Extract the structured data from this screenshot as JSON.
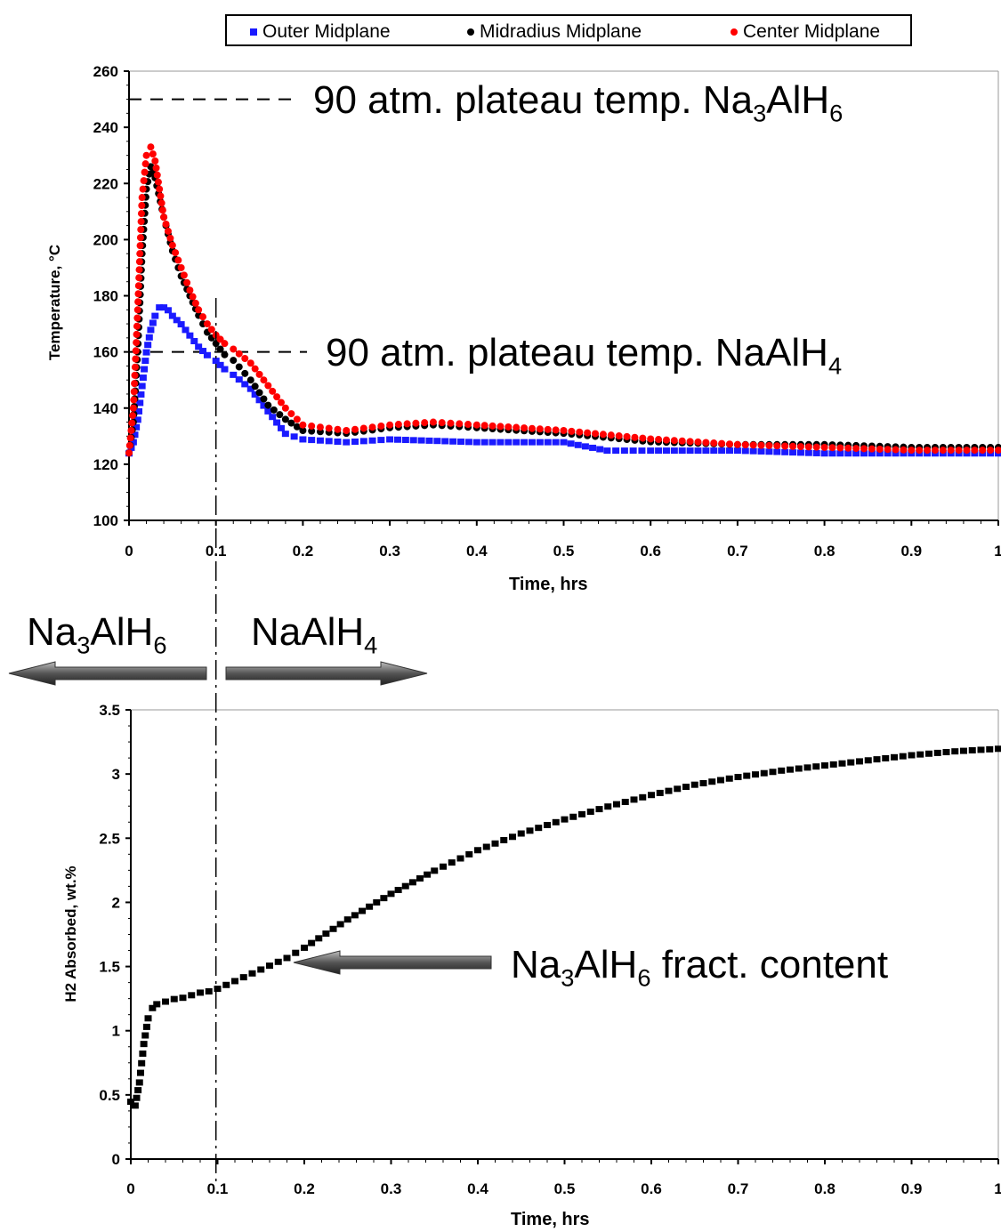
{
  "legend": {
    "items": [
      {
        "label": "Outer Midplane",
        "color": "#1a1aff"
      },
      {
        "label": "Midradius Midplane",
        "color": "#000000"
      },
      {
        "label": "Center Midplane",
        "color": "#ff0000"
      }
    ]
  },
  "annotations": {
    "na3alh6_plateau": {
      "text": "90 atm. plateau temp. Na",
      "sub1": "3",
      "mid": "AlH",
      "sub2": "6"
    },
    "naalh4_plateau": {
      "text": "90 atm. plateau temp. NaAlH",
      "sub1": "4"
    },
    "arrow_left": {
      "text": "Na",
      "sub1": "3",
      "mid": "AlH",
      "sub2": "6"
    },
    "arrow_right": {
      "text": "NaAlH",
      "sub1": "4"
    },
    "fraction": {
      "text": "Na",
      "sub1": "3",
      "mid": "AlH",
      "sub2": "6",
      "tail": " fract. content"
    }
  },
  "chart_data": [
    {
      "type": "scatter",
      "xlabel": "Time, hrs",
      "ylabel": "Temperature, °C",
      "xlim": [
        0,
        1
      ],
      "ylim": [
        100,
        260
      ],
      "xticks": [
        "0",
        "0.1",
        "0.2",
        "0.3",
        "0.4",
        "0.5",
        "0.6",
        "0.7",
        "0.8",
        "0.9",
        "1"
      ],
      "yticks": [
        "100",
        "120",
        "140",
        "160",
        "180",
        "200",
        "220",
        "240",
        "260"
      ],
      "reference_lines": [
        {
          "y": 250,
          "label": "90 atm. plateau temp. Na3AlH6"
        },
        {
          "y": 160,
          "label": "90 atm. plateau temp. NaAlH4"
        }
      ],
      "vertical_marker_x": 0.1,
      "series": [
        {
          "name": "Outer Midplane",
          "color": "#1a1aff",
          "x": [
            0,
            0.005,
            0.01,
            0.015,
            0.02,
            0.025,
            0.03,
            0.035,
            0.04,
            0.045,
            0.05,
            0.06,
            0.07,
            0.08,
            0.09,
            0.1,
            0.11,
            0.12,
            0.14,
            0.16,
            0.18,
            0.2,
            0.25,
            0.3,
            0.4,
            0.5,
            0.55,
            0.6,
            0.7,
            0.8,
            0.9,
            1.0
          ],
          "y": [
            124,
            128,
            136,
            148,
            160,
            168,
            173,
            176,
            176,
            175,
            173,
            170,
            166,
            162,
            159,
            157,
            154,
            152,
            147,
            139,
            131,
            129,
            128,
            129,
            128,
            128,
            125,
            125,
            125,
            124,
            124,
            124
          ]
        },
        {
          "name": "Midradius Midplane",
          "color": "#000000",
          "x": [
            0,
            0.005,
            0.01,
            0.015,
            0.02,
            0.025,
            0.03,
            0.04,
            0.05,
            0.06,
            0.07,
            0.08,
            0.09,
            0.1,
            0.11,
            0.12,
            0.14,
            0.16,
            0.18,
            0.2,
            0.25,
            0.3,
            0.35,
            0.4,
            0.5,
            0.6,
            0.7,
            0.8,
            0.9,
            1.0
          ],
          "y": [
            124,
            135,
            160,
            195,
            218,
            226,
            222,
            208,
            196,
            187,
            180,
            173,
            167,
            163,
            159,
            157,
            150,
            141,
            136,
            132,
            131,
            133,
            134,
            133,
            131,
            128,
            127,
            127,
            126,
            126
          ]
        },
        {
          "name": "Center Midplane",
          "color": "#ff0000",
          "x": [
            0,
            0.005,
            0.01,
            0.015,
            0.02,
            0.025,
            0.03,
            0.035,
            0.04,
            0.05,
            0.06,
            0.07,
            0.08,
            0.09,
            0.1,
            0.11,
            0.12,
            0.14,
            0.16,
            0.18,
            0.2,
            0.25,
            0.3,
            0.35,
            0.4,
            0.5,
            0.6,
            0.7,
            0.8,
            0.9,
            1.0
          ],
          "y": [
            124,
            140,
            175,
            215,
            230,
            233,
            228,
            218,
            208,
            198,
            190,
            182,
            175,
            170,
            166,
            163,
            161,
            156,
            148,
            140,
            134,
            132,
            134,
            135,
            134,
            132,
            129,
            127,
            126,
            125,
            125
          ]
        }
      ]
    },
    {
      "type": "scatter",
      "xlabel": "Time, hrs",
      "ylabel": "H2 Absorbed, wt.%",
      "xlim": [
        0,
        1
      ],
      "ylim": [
        0,
        3.5
      ],
      "xticks": [
        "0",
        "0.1",
        "0.2",
        "0.3",
        "0.4",
        "0.5",
        "0.6",
        "0.7",
        "0.8",
        "0.9",
        "1"
      ],
      "yticks": [
        "0",
        "0.5",
        "1",
        "1.5",
        "2",
        "2.5",
        "3",
        "3.5"
      ],
      "vertical_marker_x": 0.1,
      "series": [
        {
          "name": "",
          "color": "#000000",
          "x": [
            0,
            0.005,
            0.01,
            0.015,
            0.02,
            0.025,
            0.03,
            0.04,
            0.05,
            0.06,
            0.07,
            0.08,
            0.09,
            0.1,
            0.11,
            0.12,
            0.15,
            0.18,
            0.2,
            0.25,
            0.3,
            0.35,
            0.4,
            0.45,
            0.5,
            0.55,
            0.6,
            0.65,
            0.7,
            0.75,
            0.8,
            0.85,
            0.9,
            0.95,
            1.0
          ],
          "y": [
            0.45,
            0.42,
            0.6,
            0.9,
            1.1,
            1.18,
            1.21,
            1.23,
            1.25,
            1.26,
            1.28,
            1.3,
            1.31,
            1.33,
            1.36,
            1.39,
            1.48,
            1.57,
            1.65,
            1.87,
            2.07,
            2.25,
            2.41,
            2.54,
            2.65,
            2.75,
            2.84,
            2.92,
            2.98,
            3.03,
            3.07,
            3.11,
            3.15,
            3.18,
            3.2
          ]
        }
      ]
    }
  ]
}
